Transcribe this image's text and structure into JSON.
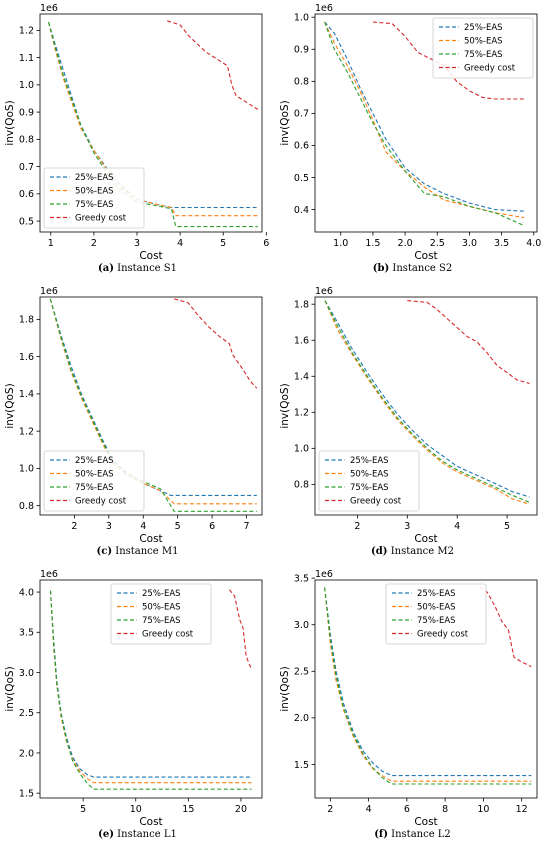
{
  "chart_data": [
    {
      "type": "line",
      "caption_letter": "(a)",
      "caption_text": "Instance S1",
      "xlabel": "Cost",
      "ylabel": "inv(QoS)",
      "scale_note": "1e6",
      "xlim": [
        0.75,
        5.9
      ],
      "ylim": [
        0.46,
        1.26
      ],
      "xticks": [
        1,
        2,
        3,
        4,
        5,
        6
      ],
      "xtick_labels": [
        "1",
        "2",
        "3",
        "4",
        "5",
        "6"
      ],
      "yticks": [
        0.5,
        0.6,
        0.7,
        0.8,
        0.9,
        1.0,
        1.1,
        1.2
      ],
      "ytick_labels": [
        "0.5",
        "0.6",
        "0.7",
        "0.8",
        "0.9",
        "1.0",
        "1.1",
        "1.2"
      ],
      "legend_position": "lower-left",
      "series": [
        {
          "name": "25%-EAS",
          "color": "#1f77b4",
          "x": [
            0.95,
            1.1,
            1.3,
            1.5,
            1.7,
            2.0,
            2.5,
            3.0,
            3.5,
            3.8,
            4.0,
            5.8
          ],
          "y": [
            1.23,
            1.15,
            1.05,
            0.95,
            0.85,
            0.76,
            0.65,
            0.58,
            0.56,
            0.55,
            0.55,
            0.55
          ]
        },
        {
          "name": "50%-EAS",
          "color": "#ff7f0e",
          "x": [
            0.95,
            1.1,
            1.3,
            1.5,
            1.7,
            2.0,
            2.5,
            3.0,
            3.5,
            3.8,
            3.9,
            5.8
          ],
          "y": [
            1.23,
            1.13,
            1.02,
            0.93,
            0.84,
            0.76,
            0.64,
            0.58,
            0.56,
            0.55,
            0.52,
            0.52
          ]
        },
        {
          "name": "75%-EAS",
          "color": "#2ca02c",
          "x": [
            0.95,
            1.1,
            1.3,
            1.5,
            1.7,
            2.0,
            2.5,
            3.0,
            3.5,
            3.8,
            3.9,
            5.8
          ],
          "y": [
            1.23,
            1.14,
            1.03,
            0.94,
            0.85,
            0.75,
            0.63,
            0.57,
            0.555,
            0.545,
            0.48,
            0.48
          ]
        },
        {
          "name": "Greedy cost",
          "color": "#d62728",
          "x": [
            3.7,
            4.0,
            4.2,
            4.4,
            4.6,
            4.8,
            5.1,
            5.2,
            5.3,
            5.5,
            5.8
          ],
          "y": [
            1.235,
            1.22,
            1.18,
            1.15,
            1.12,
            1.1,
            1.07,
            1.0,
            0.96,
            0.94,
            0.91
          ]
        }
      ]
    },
    {
      "type": "line",
      "caption_letter": "(b)",
      "caption_text": "Instance S2",
      "xlabel": "Cost",
      "ylabel": "inv(QoS)",
      "scale_note": "1e6",
      "xlim": [
        0.6,
        4.05
      ],
      "ylim": [
        0.33,
        1.01
      ],
      "xticks": [
        1.0,
        1.5,
        2.0,
        2.5,
        3.0,
        3.5,
        4.0
      ],
      "xtick_labels": [
        "1.0",
        "1.5",
        "2.0",
        "2.5",
        "3.0",
        "3.5",
        "4.0"
      ],
      "yticks": [
        0.4,
        0.5,
        0.6,
        0.7,
        0.8,
        0.9,
        1.0
      ],
      "ytick_labels": [
        "0.4",
        "0.5",
        "0.6",
        "0.7",
        "0.8",
        "0.9",
        "1.0"
      ],
      "legend_position": "top-right",
      "series": [
        {
          "name": "25%-EAS",
          "color": "#1f77b4",
          "x": [
            0.75,
            0.9,
            1.1,
            1.3,
            1.5,
            1.7,
            2.0,
            2.3,
            2.6,
            3.0,
            3.4,
            3.85
          ],
          "y": [
            0.985,
            0.95,
            0.87,
            0.78,
            0.7,
            0.62,
            0.53,
            0.48,
            0.45,
            0.42,
            0.4,
            0.395
          ]
        },
        {
          "name": "50%-EAS",
          "color": "#ff7f0e",
          "x": [
            0.75,
            0.9,
            1.1,
            1.3,
            1.5,
            1.7,
            2.0,
            2.3,
            2.6,
            3.0,
            3.4,
            3.85
          ],
          "y": [
            0.985,
            0.92,
            0.85,
            0.77,
            0.68,
            0.58,
            0.52,
            0.47,
            0.43,
            0.41,
            0.39,
            0.375
          ]
        },
        {
          "name": "75%-EAS",
          "color": "#2ca02c",
          "x": [
            0.75,
            0.9,
            1.1,
            1.3,
            1.5,
            1.7,
            2.0,
            2.3,
            2.6,
            3.0,
            3.4,
            3.85
          ],
          "y": [
            0.985,
            0.9,
            0.83,
            0.75,
            0.67,
            0.6,
            0.52,
            0.45,
            0.44,
            0.41,
            0.39,
            0.35
          ]
        },
        {
          "name": "Greedy cost",
          "color": "#d62728",
          "x": [
            1.5,
            1.8,
            2.0,
            2.2,
            2.4,
            2.6,
            2.8,
            3.0,
            3.2,
            3.4,
            3.85
          ],
          "y": [
            0.985,
            0.98,
            0.94,
            0.89,
            0.87,
            0.85,
            0.8,
            0.77,
            0.75,
            0.745,
            0.745
          ]
        }
      ]
    },
    {
      "type": "line",
      "caption_letter": "(c)",
      "caption_text": "Instance M1",
      "xlabel": "Cost",
      "ylabel": "inv(QoS)",
      "scale_note": "1e6",
      "xlim": [
        1.0,
        7.45
      ],
      "ylim": [
        0.75,
        1.92
      ],
      "xticks": [
        2,
        3,
        4,
        5,
        6,
        7
      ],
      "xtick_labels": [
        "2",
        "3",
        "4",
        "5",
        "6",
        "7"
      ],
      "yticks": [
        0.8,
        1.0,
        1.2,
        1.4,
        1.6,
        1.8
      ],
      "ytick_labels": [
        "0.8",
        "1.0",
        "1.2",
        "1.4",
        "1.6",
        "1.8"
      ],
      "legend_position": "lower-left",
      "series": [
        {
          "name": "25%-EAS",
          "color": "#1f77b4",
          "x": [
            1.3,
            1.6,
            1.9,
            2.2,
            2.5,
            2.8,
            3.1,
            3.5,
            4.0,
            4.5,
            4.8,
            7.3
          ],
          "y": [
            1.91,
            1.72,
            1.55,
            1.4,
            1.28,
            1.16,
            1.05,
            0.97,
            0.92,
            0.88,
            0.855,
            0.855
          ]
        },
        {
          "name": "50%-EAS",
          "color": "#ff7f0e",
          "x": [
            1.3,
            1.6,
            1.9,
            2.2,
            2.5,
            2.8,
            3.1,
            3.5,
            4.0,
            4.5,
            4.9,
            7.3
          ],
          "y": [
            1.91,
            1.7,
            1.52,
            1.38,
            1.26,
            1.14,
            1.03,
            0.97,
            0.92,
            0.88,
            0.81,
            0.81
          ]
        },
        {
          "name": "75%-EAS",
          "color": "#2ca02c",
          "x": [
            1.3,
            1.6,
            1.9,
            2.2,
            2.5,
            2.8,
            3.1,
            3.5,
            4.0,
            4.5,
            4.9,
            7.3
          ],
          "y": [
            1.91,
            1.71,
            1.53,
            1.39,
            1.27,
            1.15,
            1.04,
            0.98,
            0.93,
            0.89,
            0.77,
            0.77
          ]
        },
        {
          "name": "Greedy cost",
          "color": "#d62728",
          "x": [
            4.9,
            5.3,
            5.6,
            5.9,
            6.2,
            6.5,
            6.6,
            6.9,
            7.1,
            7.3
          ],
          "y": [
            1.91,
            1.89,
            1.82,
            1.76,
            1.71,
            1.67,
            1.61,
            1.53,
            1.47,
            1.43
          ]
        }
      ]
    },
    {
      "type": "line",
      "caption_letter": "(d)",
      "caption_text": "Instance M2",
      "xlabel": "Cost",
      "ylabel": "inv(QoS)",
      "scale_note": "1e6",
      "xlim": [
        1.15,
        5.6
      ],
      "ylim": [
        0.63,
        1.84
      ],
      "xticks": [
        2,
        3,
        4,
        5
      ],
      "xtick_labels": [
        "2",
        "3",
        "4",
        "5"
      ],
      "yticks": [
        0.8,
        1.0,
        1.2,
        1.4,
        1.6,
        1.8
      ],
      "ytick_labels": [
        "0.8",
        "1.0",
        "1.2",
        "1.4",
        "1.6",
        "1.8"
      ],
      "legend_position": "lower-left",
      "series": [
        {
          "name": "25%-EAS",
          "color": "#1f77b4",
          "x": [
            1.35,
            1.6,
            1.9,
            2.2,
            2.5,
            2.8,
            3.1,
            3.4,
            3.7,
            4.0,
            4.4,
            4.8,
            5.1,
            5.45
          ],
          "y": [
            1.82,
            1.7,
            1.55,
            1.42,
            1.3,
            1.19,
            1.1,
            1.02,
            0.96,
            0.9,
            0.85,
            0.8,
            0.76,
            0.73
          ]
        },
        {
          "name": "50%-EAS",
          "color": "#ff7f0e",
          "x": [
            1.35,
            1.6,
            1.9,
            2.2,
            2.5,
            2.8,
            3.1,
            3.4,
            3.7,
            4.0,
            4.4,
            4.8,
            5.1,
            5.45
          ],
          "y": [
            1.82,
            1.66,
            1.52,
            1.39,
            1.27,
            1.16,
            1.07,
            0.99,
            0.92,
            0.87,
            0.82,
            0.77,
            0.72,
            0.69
          ]
        },
        {
          "name": "75%-EAS",
          "color": "#2ca02c",
          "x": [
            1.35,
            1.6,
            1.9,
            2.2,
            2.5,
            2.8,
            3.1,
            3.4,
            3.7,
            4.0,
            4.4,
            4.8,
            5.1,
            5.45
          ],
          "y": [
            1.82,
            1.68,
            1.53,
            1.4,
            1.28,
            1.17,
            1.08,
            1.0,
            0.93,
            0.88,
            0.83,
            0.78,
            0.74,
            0.7
          ]
        },
        {
          "name": "Greedy cost",
          "color": "#d62728",
          "x": [
            3.0,
            3.4,
            3.6,
            3.8,
            4.0,
            4.2,
            4.4,
            4.6,
            4.8,
            5.0,
            5.2,
            5.45
          ],
          "y": [
            1.82,
            1.81,
            1.77,
            1.72,
            1.67,
            1.62,
            1.59,
            1.53,
            1.46,
            1.42,
            1.38,
            1.36
          ]
        }
      ]
    },
    {
      "type": "line",
      "caption_letter": "(e)",
      "caption_text": "Instance L1",
      "xlabel": "Cost",
      "ylabel": "inv(QoS)",
      "scale_note": "1e6",
      "xlim": [
        0.9,
        22.0
      ],
      "ylim": [
        1.44,
        4.15
      ],
      "xticks": [
        5,
        10,
        15,
        20
      ],
      "xtick_labels": [
        "5",
        "10",
        "15",
        "20"
      ],
      "yticks": [
        1.5,
        2.0,
        2.5,
        3.0,
        3.5,
        4.0
      ],
      "ytick_labels": [
        "1.5",
        "2.0",
        "2.5",
        "3.0",
        "3.5",
        "4.0"
      ],
      "legend_position": "top-center",
      "series": [
        {
          "name": "25%-EAS",
          "color": "#1f77b4",
          "x": [
            1.9,
            2.2,
            2.5,
            2.9,
            3.4,
            4.0,
            4.7,
            5.4,
            6.0,
            21.0
          ],
          "y": [
            4.02,
            3.4,
            2.9,
            2.5,
            2.2,
            1.95,
            1.8,
            1.73,
            1.7,
            1.7
          ]
        },
        {
          "name": "50%-EAS",
          "color": "#ff7f0e",
          "x": [
            1.9,
            2.2,
            2.5,
            2.9,
            3.4,
            4.0,
            4.7,
            5.4,
            6.0,
            21.0
          ],
          "y": [
            4.02,
            3.3,
            2.85,
            2.45,
            2.15,
            1.92,
            1.77,
            1.68,
            1.63,
            1.63
          ]
        },
        {
          "name": "75%-EAS",
          "color": "#2ca02c",
          "x": [
            1.9,
            2.2,
            2.5,
            2.9,
            3.4,
            4.0,
            4.7,
            5.4,
            6.0,
            21.0
          ],
          "y": [
            4.02,
            3.35,
            2.85,
            2.48,
            2.17,
            1.9,
            1.74,
            1.62,
            1.55,
            1.55
          ]
        },
        {
          "name": "Greedy cost",
          "color": "#d62728",
          "x": [
            18.9,
            19.4,
            19.9,
            20.2,
            20.5,
            20.8,
            21.0
          ],
          "y": [
            4.03,
            3.95,
            3.65,
            3.55,
            3.2,
            3.1,
            3.05
          ]
        }
      ]
    },
    {
      "type": "line",
      "caption_letter": "(f)",
      "caption_text": "Instance L2",
      "xlabel": "Cost",
      "ylabel": "inv(QoS)",
      "scale_note": "1e6",
      "xlim": [
        1.2,
        12.8
      ],
      "ylim": [
        1.14,
        3.48
      ],
      "xticks": [
        2,
        4,
        6,
        8,
        10,
        12
      ],
      "xtick_labels": [
        "2",
        "4",
        "6",
        "8",
        "10",
        "12"
      ],
      "yticks": [
        1.5,
        2.0,
        2.5,
        3.0,
        3.5
      ],
      "ytick_labels": [
        "1.5",
        "2.0",
        "2.5",
        "3.0",
        "3.5"
      ],
      "legend_position": "top-center",
      "series": [
        {
          "name": "25%-EAS",
          "color": "#1f77b4",
          "x": [
            1.7,
            2.0,
            2.3,
            2.7,
            3.2,
            3.7,
            4.2,
            4.7,
            5.2,
            12.5
          ],
          "y": [
            3.4,
            2.9,
            2.5,
            2.15,
            1.85,
            1.65,
            1.52,
            1.43,
            1.38,
            1.38
          ]
        },
        {
          "name": "50%-EAS",
          "color": "#ff7f0e",
          "x": [
            1.7,
            2.0,
            2.3,
            2.7,
            3.2,
            3.7,
            4.2,
            4.7,
            5.2,
            12.5
          ],
          "y": [
            3.4,
            2.8,
            2.4,
            2.08,
            1.8,
            1.6,
            1.46,
            1.38,
            1.32,
            1.32
          ]
        },
        {
          "name": "75%-EAS",
          "color": "#2ca02c",
          "x": [
            1.7,
            2.0,
            2.3,
            2.7,
            3.2,
            3.7,
            4.2,
            4.7,
            5.2,
            12.5
          ],
          "y": [
            3.4,
            2.85,
            2.45,
            2.1,
            1.82,
            1.62,
            1.47,
            1.36,
            1.29,
            1.29
          ]
        },
        {
          "name": "Greedy cost",
          "color": "#d62728",
          "x": [
            9.8,
            10.2,
            10.6,
            11.0,
            11.3,
            11.6,
            12.0,
            12.5
          ],
          "y": [
            3.4,
            3.35,
            3.2,
            3.02,
            2.95,
            2.65,
            2.6,
            2.55
          ]
        }
      ]
    }
  ]
}
